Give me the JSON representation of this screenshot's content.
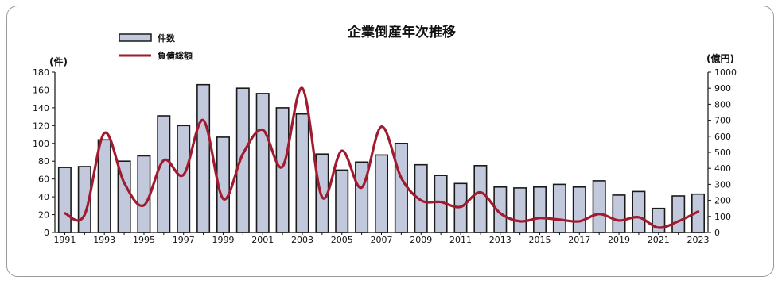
{
  "chart_data": {
    "type": "bar+line",
    "title": "企業倒産年次推移",
    "left_unit": "(件)",
    "right_unit": "(億円)",
    "x": [
      1991,
      1992,
      1993,
      1994,
      1995,
      1996,
      1997,
      1998,
      1999,
      2000,
      2001,
      2002,
      2003,
      2004,
      2005,
      2006,
      2007,
      2008,
      2009,
      2010,
      2011,
      2012,
      2013,
      2014,
      2015,
      2016,
      2017,
      2018,
      2019,
      2020,
      2021,
      2022,
      2023
    ],
    "x_tick_labels": [
      "1991",
      "1993",
      "1995",
      "1997",
      "1999",
      "2001",
      "2003",
      "2005",
      "2007",
      "2009",
      "2011",
      "2013",
      "2015",
      "2017",
      "2019",
      "2021",
      "2023"
    ],
    "left_axis": {
      "min": 0,
      "max": 180,
      "step": 20
    },
    "right_axis": {
      "min": 0,
      "max": 1000,
      "step": 100
    },
    "series": [
      {
        "name": "件数",
        "kind": "bar",
        "axis": "left",
        "values": [
          73,
          74,
          104,
          80,
          86,
          131,
          120,
          166,
          107,
          162,
          156,
          140,
          133,
          88,
          70,
          79,
          87,
          100,
          76,
          64,
          55,
          75,
          51,
          50,
          51,
          54,
          51,
          58,
          42,
          46,
          27,
          41,
          43
        ]
      },
      {
        "name": "負債総額",
        "kind": "line",
        "axis": "right",
        "values": [
          120,
          110,
          620,
          310,
          170,
          450,
          360,
          700,
          210,
          490,
          640,
          410,
          900,
          220,
          510,
          280,
          660,
          340,
          200,
          190,
          160,
          250,
          120,
          70,
          90,
          80,
          70,
          115,
          75,
          95,
          30,
          70,
          130
        ]
      }
    ],
    "colors": {
      "bar_fill": "#c3c9dc",
      "bar_stroke": "#1a1a1a",
      "line": "#a11b30"
    }
  }
}
